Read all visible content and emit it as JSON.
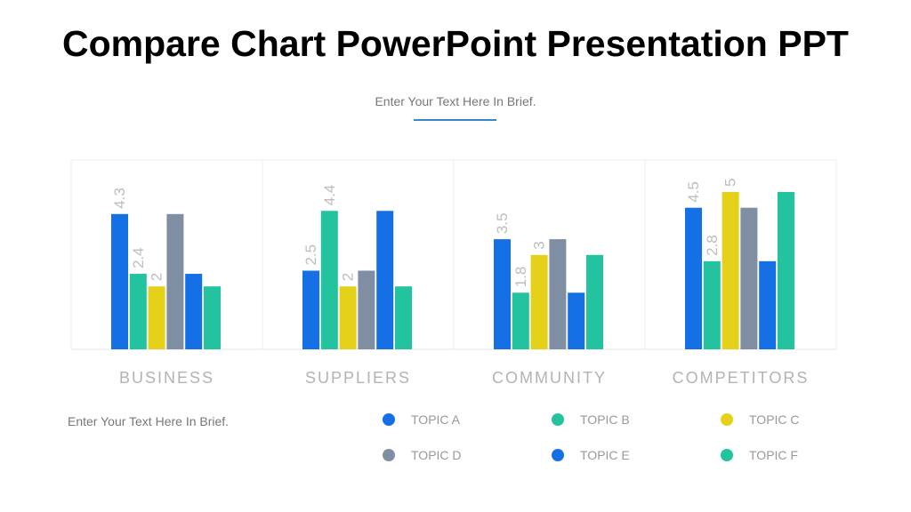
{
  "title": "Compare Chart PowerPoint Presentation PPT",
  "subtitle": "Enter Your Text Here In Brief.",
  "note": "Enter Your Text Here In Brief.",
  "chart_data": {
    "type": "bar",
    "categories": [
      "BUSINESS",
      "SUPPLIERS",
      "COMMUNITY",
      "COMPETITORS"
    ],
    "series": [
      {
        "name": "TOPIC A",
        "color": "#1570e6",
        "values": [
          4.3,
          2.5,
          3.5,
          4.5
        ],
        "labeled": true
      },
      {
        "name": "TOPIC B",
        "color": "#22c39e",
        "values": [
          2.4,
          4.4,
          1.8,
          2.8
        ],
        "labeled": true
      },
      {
        "name": "TOPIC C",
        "color": "#e5d11a",
        "values": [
          2,
          2,
          3,
          5
        ],
        "labeled": true
      },
      {
        "name": "TOPIC D",
        "color": "#7f8ea3",
        "values": [
          4.3,
          2.5,
          3.5,
          4.5
        ],
        "labeled": false
      },
      {
        "name": "TOPIC E",
        "color": "#1570e6",
        "values": [
          2.4,
          4.4,
          1.8,
          2.8
        ],
        "labeled": false
      },
      {
        "name": "TOPIC F",
        "color": "#22c39e",
        "values": [
          2,
          2,
          3,
          5
        ],
        "labeled": false
      }
    ],
    "ylim": [
      0,
      5
    ],
    "grid": false,
    "legend": "bottom"
  }
}
